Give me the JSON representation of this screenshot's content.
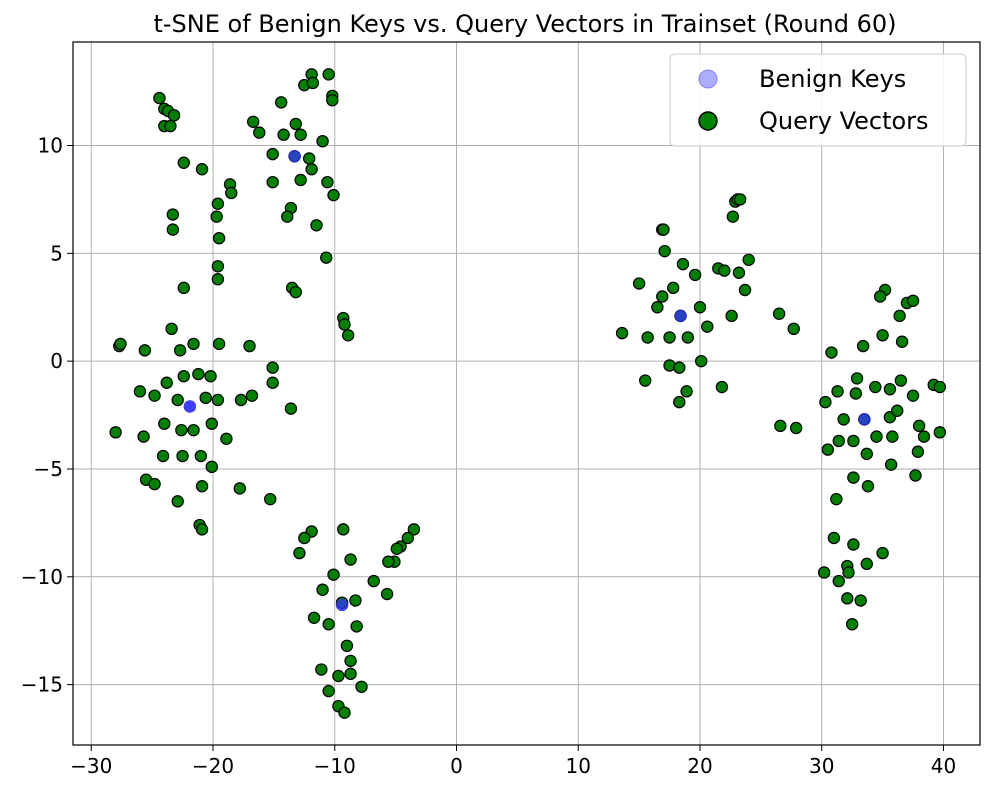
{
  "chart_data": {
    "type": "scatter",
    "title": "t-SNE of Benign Keys vs. Query Vectors in Trainset (Round 60)",
    "xlabel": "",
    "ylabel": "",
    "xlim": [
      -31.5,
      43.0
    ],
    "ylim": [
      -17.8,
      14.8
    ],
    "x_ticks": [
      -30,
      -20,
      -10,
      0,
      10,
      20,
      30,
      40
    ],
    "y_ticks": [
      -15,
      -10,
      -5,
      0,
      5,
      10
    ],
    "x_tick_labels": [
      "−30",
      "−20",
      "−10",
      "0",
      "10",
      "20",
      "30",
      "40"
    ],
    "y_tick_labels": [
      "−15",
      "−10",
      "−5",
      "0",
      "5",
      "10"
    ],
    "grid": true,
    "legend_position": "top-right",
    "series": [
      {
        "name": "Benign Keys",
        "color": "#3333ff",
        "points": [
          [
            -13.3,
            9.5
          ],
          [
            -21.9,
            -2.1
          ],
          [
            -9.4,
            -11.3
          ],
          [
            18.4,
            2.1
          ],
          [
            33.5,
            -2.7
          ]
        ]
      },
      {
        "name": "Query Vectors",
        "color": "#008000",
        "edge_color": "#000000",
        "points": [
          [
            -24.4,
            12.2
          ],
          [
            -24.0,
            11.7
          ],
          [
            -23.7,
            11.6
          ],
          [
            -23.2,
            11.4
          ],
          [
            -24.0,
            10.9
          ],
          [
            -23.5,
            10.9
          ],
          [
            -22.4,
            9.2
          ],
          [
            -20.9,
            8.9
          ],
          [
            -23.3,
            6.8
          ],
          [
            -23.3,
            6.1
          ],
          [
            -22.4,
            3.4
          ],
          [
            -18.6,
            8.2
          ],
          [
            -18.5,
            7.8
          ],
          [
            -19.6,
            7.3
          ],
          [
            -19.7,
            6.7
          ],
          [
            -19.5,
            5.7
          ],
          [
            -19.6,
            4.4
          ],
          [
            -19.6,
            3.8
          ],
          [
            -16.7,
            11.1
          ],
          [
            -16.2,
            10.6
          ],
          [
            -14.4,
            12.0
          ],
          [
            -14.2,
            10.5
          ],
          [
            -13.2,
            11.0
          ],
          [
            -12.8,
            10.5
          ],
          [
            -12.5,
            12.8
          ],
          [
            -11.9,
            13.3
          ],
          [
            -11.8,
            12.9
          ],
          [
            -10.5,
            13.3
          ],
          [
            -10.2,
            12.3
          ],
          [
            -10.2,
            12.1
          ],
          [
            -11.0,
            10.2
          ],
          [
            -12.1,
            9.4
          ],
          [
            -13.3,
            9.5
          ],
          [
            -15.1,
            9.6
          ],
          [
            -15.1,
            8.3
          ],
          [
            -12.8,
            8.4
          ],
          [
            -11.9,
            8.9
          ],
          [
            -10.6,
            8.3
          ],
          [
            -10.1,
            7.7
          ],
          [
            -13.6,
            7.1
          ],
          [
            -13.9,
            6.7
          ],
          [
            -11.5,
            6.3
          ],
          [
            -10.7,
            4.8
          ],
          [
            -13.5,
            3.4
          ],
          [
            -13.2,
            3.2
          ],
          [
            -9.3,
            2.0
          ],
          [
            -9.2,
            1.7
          ],
          [
            -8.9,
            1.2
          ],
          [
            -27.7,
            0.7
          ],
          [
            -27.6,
            0.8
          ],
          [
            -25.6,
            0.5
          ],
          [
            -23.4,
            1.5
          ],
          [
            -22.7,
            0.5
          ],
          [
            -21.6,
            0.8
          ],
          [
            -19.5,
            0.8
          ],
          [
            -17.0,
            0.7
          ],
          [
            -23.8,
            -1.0
          ],
          [
            -26.0,
            -1.4
          ],
          [
            -24.8,
            -1.6
          ],
          [
            -22.9,
            -1.8
          ],
          [
            -22.4,
            -0.7
          ],
          [
            -21.2,
            -0.6
          ],
          [
            -20.2,
            -0.7
          ],
          [
            -20.6,
            -1.7
          ],
          [
            -19.6,
            -1.8
          ],
          [
            -17.7,
            -1.8
          ],
          [
            -16.8,
            -1.6
          ],
          [
            -15.1,
            -0.3
          ],
          [
            -15.1,
            -1.0
          ],
          [
            -13.6,
            -2.2
          ],
          [
            -28.0,
            -3.3
          ],
          [
            -25.7,
            -3.5
          ],
          [
            -24.0,
            -2.9
          ],
          [
            -22.6,
            -3.2
          ],
          [
            -21.6,
            -3.2
          ],
          [
            -20.1,
            -2.9
          ],
          [
            -18.9,
            -3.6
          ],
          [
            -24.1,
            -4.4
          ],
          [
            -22.5,
            -4.4
          ],
          [
            -21.0,
            -4.4
          ],
          [
            -20.1,
            -4.9
          ],
          [
            -25.5,
            -5.5
          ],
          [
            -24.8,
            -5.7
          ],
          [
            -20.9,
            -5.8
          ],
          [
            -22.9,
            -6.5
          ],
          [
            -17.8,
            -5.9
          ],
          [
            -15.3,
            -6.4
          ],
          [
            -21.1,
            -7.6
          ],
          [
            -20.9,
            -7.8
          ],
          [
            -9.3,
            -7.8
          ],
          [
            -11.9,
            -7.9
          ],
          [
            -12.5,
            -8.2
          ],
          [
            -12.9,
            -8.9
          ],
          [
            -8.7,
            -9.2
          ],
          [
            -3.5,
            -7.8
          ],
          [
            -4.0,
            -8.2
          ],
          [
            -4.6,
            -8.6
          ],
          [
            -4.9,
            -8.7
          ],
          [
            -5.1,
            -9.3
          ],
          [
            -5.6,
            -9.3
          ],
          [
            -10.1,
            -9.9
          ],
          [
            -6.8,
            -10.2
          ],
          [
            -11.0,
            -10.6
          ],
          [
            -8.3,
            -11.1
          ],
          [
            -9.4,
            -11.2
          ],
          [
            -5.7,
            -10.8
          ],
          [
            -11.7,
            -11.9
          ],
          [
            -10.5,
            -12.2
          ],
          [
            -8.2,
            -12.3
          ],
          [
            -9.0,
            -13.2
          ],
          [
            -8.7,
            -13.9
          ],
          [
            -11.1,
            -14.3
          ],
          [
            -9.7,
            -14.6
          ],
          [
            -8.7,
            -14.5
          ],
          [
            -7.8,
            -15.1
          ],
          [
            -10.5,
            -15.3
          ],
          [
            -9.7,
            -16.0
          ],
          [
            -9.2,
            -16.3
          ],
          [
            16.9,
            6.1
          ],
          [
            17.0,
            6.1
          ],
          [
            17.1,
            5.1
          ],
          [
            18.6,
            4.5
          ],
          [
            19.6,
            4.0
          ],
          [
            22.7,
            6.7
          ],
          [
            22.9,
            7.4
          ],
          [
            23.1,
            7.5
          ],
          [
            23.3,
            7.5
          ],
          [
            21.5,
            4.3
          ],
          [
            22.0,
            4.2
          ],
          [
            23.2,
            4.1
          ],
          [
            24.0,
            4.7
          ],
          [
            23.7,
            3.3
          ],
          [
            22.6,
            2.1
          ],
          [
            17.8,
            3.4
          ],
          [
            16.9,
            3.0
          ],
          [
            16.5,
            2.5
          ],
          [
            15.0,
            3.6
          ],
          [
            13.6,
            1.3
          ],
          [
            15.7,
            1.1
          ],
          [
            17.5,
            1.1
          ],
          [
            18.4,
            2.1
          ],
          [
            19.0,
            1.1
          ],
          [
            20.0,
            2.5
          ],
          [
            20.6,
            1.6
          ],
          [
            17.5,
            -0.2
          ],
          [
            18.3,
            -0.3
          ],
          [
            15.5,
            -0.9
          ],
          [
            20.1,
            0.0
          ],
          [
            18.9,
            -1.4
          ],
          [
            18.3,
            -1.9
          ],
          [
            21.8,
            -1.2
          ],
          [
            26.5,
            2.2
          ],
          [
            27.7,
            1.5
          ],
          [
            26.6,
            -3.0
          ],
          [
            27.9,
            -3.1
          ],
          [
            35.2,
            3.3
          ],
          [
            34.8,
            3.0
          ],
          [
            37.0,
            2.7
          ],
          [
            37.5,
            2.8
          ],
          [
            36.4,
            2.1
          ],
          [
            35.0,
            1.2
          ],
          [
            33.4,
            0.7
          ],
          [
            36.6,
            0.9
          ],
          [
            30.8,
            0.4
          ],
          [
            32.9,
            -0.8
          ],
          [
            31.3,
            -1.4
          ],
          [
            34.4,
            -1.2
          ],
          [
            35.6,
            -1.3
          ],
          [
            36.5,
            -0.9
          ],
          [
            37.5,
            -1.6
          ],
          [
            39.2,
            -1.1
          ],
          [
            39.7,
            -1.2
          ],
          [
            30.3,
            -1.9
          ],
          [
            31.8,
            -2.7
          ],
          [
            32.8,
            -1.5
          ],
          [
            33.5,
            -2.7
          ],
          [
            35.6,
            -2.6
          ],
          [
            36.2,
            -2.3
          ],
          [
            38.0,
            -3.0
          ],
          [
            39.7,
            -3.3
          ],
          [
            38.4,
            -3.5
          ],
          [
            30.5,
            -4.1
          ],
          [
            31.4,
            -3.7
          ],
          [
            32.6,
            -3.7
          ],
          [
            33.7,
            -4.3
          ],
          [
            34.5,
            -3.5
          ],
          [
            35.8,
            -3.5
          ],
          [
            37.9,
            -4.2
          ],
          [
            35.7,
            -4.8
          ],
          [
            37.7,
            -5.3
          ],
          [
            32.6,
            -5.4
          ],
          [
            33.8,
            -5.8
          ],
          [
            31.2,
            -6.4
          ],
          [
            31.0,
            -8.2
          ],
          [
            32.6,
            -8.5
          ],
          [
            35.0,
            -8.9
          ],
          [
            30.2,
            -9.8
          ],
          [
            31.4,
            -10.2
          ],
          [
            32.1,
            -9.5
          ],
          [
            32.2,
            -9.8
          ],
          [
            32.1,
            -11.0
          ],
          [
            33.2,
            -11.1
          ],
          [
            33.7,
            -9.4
          ],
          [
            32.5,
            -12.2
          ]
        ]
      }
    ]
  }
}
